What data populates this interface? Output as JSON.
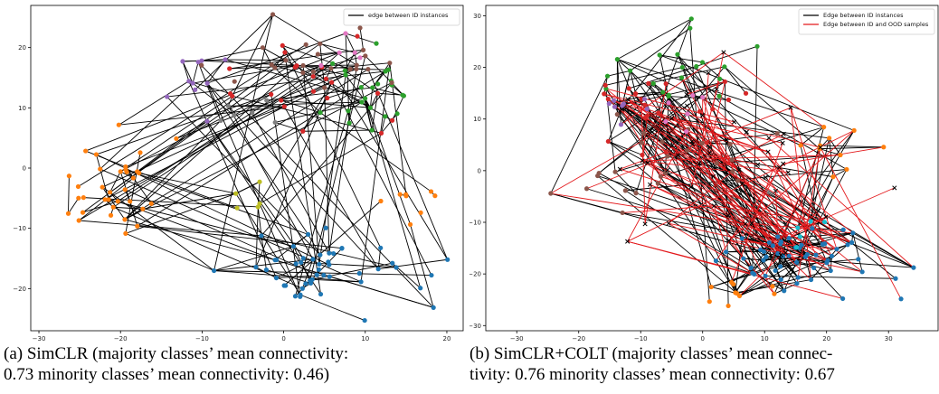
{
  "captions": {
    "a_line1": "(a) SimCLR (majority classes’ mean connectivity:",
    "a_line2": "0.73 minority classes’ mean connectivity: 0.46)",
    "b_line1": "(b) SimCLR+COLT (majority classes’ mean connec-",
    "b_line2": "tivity: 0.76 minority classes’ mean connectivity: 0.67"
  },
  "colors": {
    "id_edge": "#000000",
    "ood_edge": "#e3191c",
    "ood_marker": "#000000",
    "classes": [
      "#1f77b4",
      "#ff7f0e",
      "#2ca02c",
      "#d62728",
      "#9467bd",
      "#8c564b",
      "#e377c2",
      "#7f7f7f",
      "#bcbd22",
      "#17becf"
    ]
  },
  "chart_data": [
    {
      "type": "scatter",
      "title": "",
      "xlabel": "",
      "ylabel": "",
      "xlim": [
        -31,
        22
      ],
      "ylim": [
        -27,
        27
      ],
      "xticks": [
        -30,
        -20,
        -10,
        0,
        10,
        20
      ],
      "yticks": [
        -20,
        -10,
        0,
        10,
        20
      ],
      "grid": false,
      "legend": {
        "position": "top-right",
        "entries": [
          "edge between ID instances"
        ]
      },
      "clusters": [
        {
          "color_index": 1,
          "label": "orange-left",
          "center": [
            -21,
            -4
          ],
          "spread": [
            5,
            7
          ],
          "n": 34
        },
        {
          "color_index": 1,
          "label": "orange-right",
          "center": [
            16,
            -7
          ],
          "spread": [
            3,
            3
          ],
          "n": 8
        },
        {
          "color_index": 0,
          "label": "blue",
          "center": [
            4,
            -17
          ],
          "spread": [
            10,
            5
          ],
          "n": 48
        },
        {
          "color_index": 2,
          "label": "green",
          "center": [
            10,
            12
          ],
          "spread": [
            6,
            6
          ],
          "n": 22
        },
        {
          "color_index": 3,
          "label": "red",
          "center": [
            3,
            15
          ],
          "spread": [
            8,
            6
          ],
          "n": 22
        },
        {
          "color_index": 4,
          "label": "purple",
          "center": [
            -11,
            14
          ],
          "spread": [
            4,
            4
          ],
          "n": 10
        },
        {
          "color_index": 5,
          "label": "brown",
          "center": [
            2,
            18
          ],
          "spread": [
            9,
            5
          ],
          "n": 24
        },
        {
          "color_index": 6,
          "label": "pink",
          "center": [
            10,
            20
          ],
          "spread": [
            4,
            3
          ],
          "n": 5
        },
        {
          "color_index": 7,
          "label": "gray",
          "center": [
            -4,
            9
          ],
          "spread": [
            4,
            3
          ],
          "n": 6
        },
        {
          "color_index": 8,
          "label": "olive",
          "center": [
            -6,
            -5
          ],
          "spread": [
            4,
            4
          ],
          "n": 5
        }
      ],
      "edges": {
        "id_edges": 230,
        "ood_edges": 0
      },
      "seed": 17
    },
    {
      "type": "scatter",
      "title": "",
      "xlabel": "",
      "ylabel": "",
      "xlim": [
        -35,
        38
      ],
      "ylim": [
        -31,
        32
      ],
      "xticks": [
        -30,
        -20,
        -10,
        0,
        10,
        20,
        30
      ],
      "yticks": [
        -30,
        -20,
        -10,
        0,
        10,
        20,
        30
      ],
      "grid": false,
      "legend": {
        "position": "top-right",
        "entries": [
          "Edge between ID instances",
          "Edge between ID and OOD samples"
        ]
      },
      "clusters": [
        {
          "color_index": 0,
          "label": "blue",
          "center": [
            15,
            -17
          ],
          "spread": [
            12,
            5
          ],
          "n": 55
        },
        {
          "color_index": 1,
          "label": "orange-bottom",
          "center": [
            4,
            -24
          ],
          "spread": [
            6,
            3
          ],
          "n": 10
        },
        {
          "color_index": 1,
          "label": "orange-right",
          "center": [
            22,
            5
          ],
          "spread": [
            5,
            4
          ],
          "n": 10
        },
        {
          "color_index": 2,
          "label": "green",
          "center": [
            -6,
            20
          ],
          "spread": [
            10,
            6
          ],
          "n": 20
        },
        {
          "color_index": 3,
          "label": "red",
          "center": [
            -8,
            12
          ],
          "spread": [
            12,
            8
          ],
          "n": 22
        },
        {
          "color_index": 5,
          "label": "brown",
          "center": [
            -10,
            2
          ],
          "spread": [
            14,
            10
          ],
          "n": 25
        },
        {
          "color_index": 4,
          "label": "purple",
          "center": [
            -15,
            13
          ],
          "spread": [
            5,
            4
          ],
          "n": 8
        },
        {
          "color_index": 6,
          "label": "pink",
          "center": [
            -5,
            12
          ],
          "spread": [
            5,
            4
          ],
          "n": 6
        },
        {
          "color_index": 9,
          "label": "cyan",
          "center": [
            16,
            -10
          ],
          "spread": [
            5,
            4
          ],
          "n": 5
        }
      ],
      "ood": {
        "center": [
          2,
          2
        ],
        "spread": [
          17,
          14
        ],
        "n": 55
      },
      "edges": {
        "id_edges": 260,
        "ood_edges": 110
      },
      "seed": 29
    }
  ]
}
